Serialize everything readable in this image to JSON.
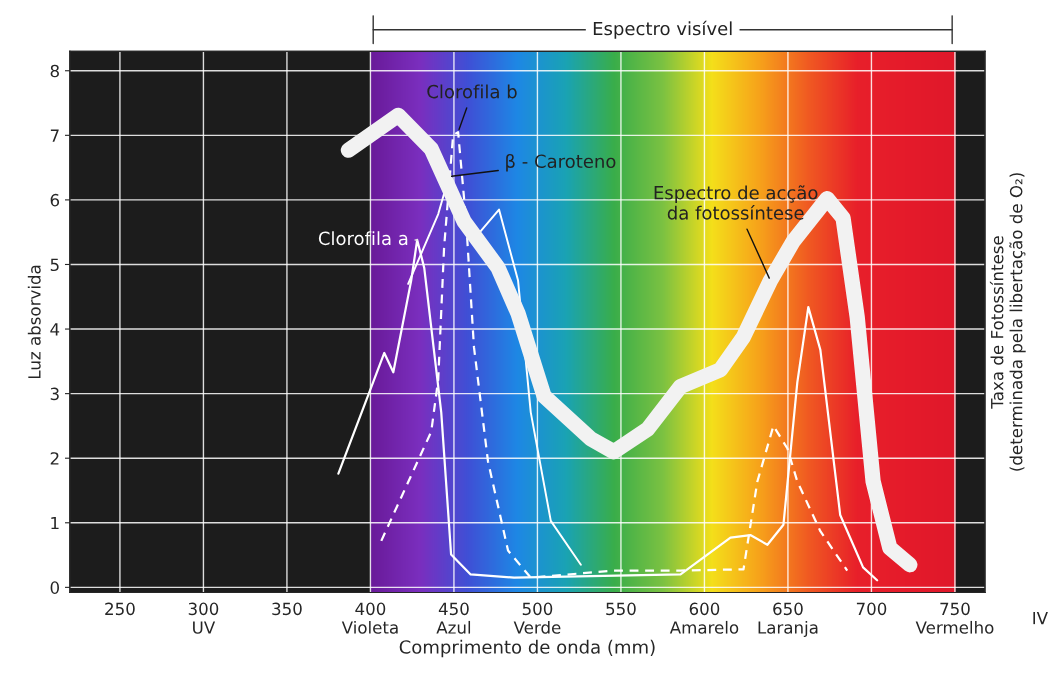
{
  "chart_data": {
    "type": "line",
    "xlabel": "Comprimento de onda (mm)",
    "ylabel": "Luz absorvida",
    "y2label": "Taxa de Fotossíntese\n(determinada pela libertação de O₂)",
    "xlim": [
      220,
      768
    ],
    "ylim": [
      -0.08,
      8.3
    ],
    "xticks": [
      {
        "value": 250,
        "label": "250\n "
      },
      {
        "value": 300,
        "label": "300\nUV"
      },
      {
        "value": 350,
        "label": "350\n "
      },
      {
        "value": 400,
        "label": "400\nVioleta"
      },
      {
        "value": 450,
        "label": "450\nAzul"
      },
      {
        "value": 500,
        "label": "500\nVerde"
      },
      {
        "value": 550,
        "label": "550\n "
      },
      {
        "value": 600,
        "label": "600\nAmarelo"
      },
      {
        "value": 650,
        "label": "650\nLaranja"
      },
      {
        "value": 700,
        "label": "700\n "
      },
      {
        "value": 750,
        "label": "750\nVermelho"
      }
    ],
    "yticks": [
      0,
      1,
      2,
      3,
      4,
      5,
      6,
      7,
      8
    ],
    "grid": true,
    "legend": false,
    "bands": [
      {
        "axis": "x",
        "from": 400,
        "to": 750,
        "label": "Espectro visível"
      }
    ],
    "annotations": [
      "IV"
    ],
    "series": [
      {
        "name": "Clorofila a",
        "color": "#ffffff",
        "x": [
          380.8,
          408.3,
          413.7,
          424.4,
          428,
          432.2,
          442.4,
          448.3,
          460,
          486,
          585.7,
          615.6,
          627.5,
          637.7,
          647.3,
          655.6,
          662.2,
          669.4,
          681.3,
          695,
          703.4
        ],
        "values": [
          1.76,
          3.63,
          3.33,
          4.75,
          5.38,
          4.95,
          2.71,
          0.51,
          0.2,
          0.15,
          0.2,
          0.77,
          0.81,
          0.66,
          0.97,
          3.17,
          4.34,
          3.68,
          1.12,
          0.31,
          0.11
        ]
      },
      {
        "name": "Clorofila b",
        "color": "#ffffff",
        "line_style": "dashed",
        "x": [
          406.5,
          436.4,
          440.6,
          444.1,
          449.5,
          452.5,
          457.3,
          462,
          470.4,
          482.4,
          496,
          545.7,
          585.7,
          623.4,
          631.7,
          641.3,
          649.7,
          655.6,
          669.4,
          685.5
        ],
        "values": [
          0.72,
          2.41,
          3.22,
          5.26,
          7.0,
          7.05,
          5.67,
          3.72,
          1.95,
          0.57,
          0.15,
          0.26,
          0.26,
          0.28,
          1.64,
          2.5,
          2.15,
          1.64,
          0.87,
          0.26
        ]
      },
      {
        "name": "β - Caroteno",
        "color": "#ffffff",
        "x": [
          422.6,
          440.6,
          447,
          456,
          458.5,
          464.5,
          477,
          488.4,
          496,
          508,
          526
        ],
        "values": [
          4.7,
          5.78,
          6.36,
          5.78,
          5.67,
          5.47,
          5.85,
          4.75,
          2.71,
          1.03,
          0.35
        ]
      },
      {
        "name": "Espectro de acção\nda fotossíntese",
        "color": "#f2f2f2",
        "x": [
          386.8,
          416.7,
          436.4,
          456,
          476.4,
          488.4,
          504,
          532,
          545.7,
          566,
          585.7,
          609.6,
          623.4,
          639.5,
          653.2,
          673.5,
          683,
          691.5,
          701,
          711,
          723
        ],
        "values": [
          6.77,
          7.31,
          6.79,
          5.67,
          4.95,
          4.24,
          2.96,
          2.3,
          2.1,
          2.45,
          3.11,
          3.37,
          3.88,
          4.75,
          5.36,
          6.02,
          5.72,
          4.18,
          1.64,
          0.61,
          0.35
        ]
      }
    ]
  }
}
